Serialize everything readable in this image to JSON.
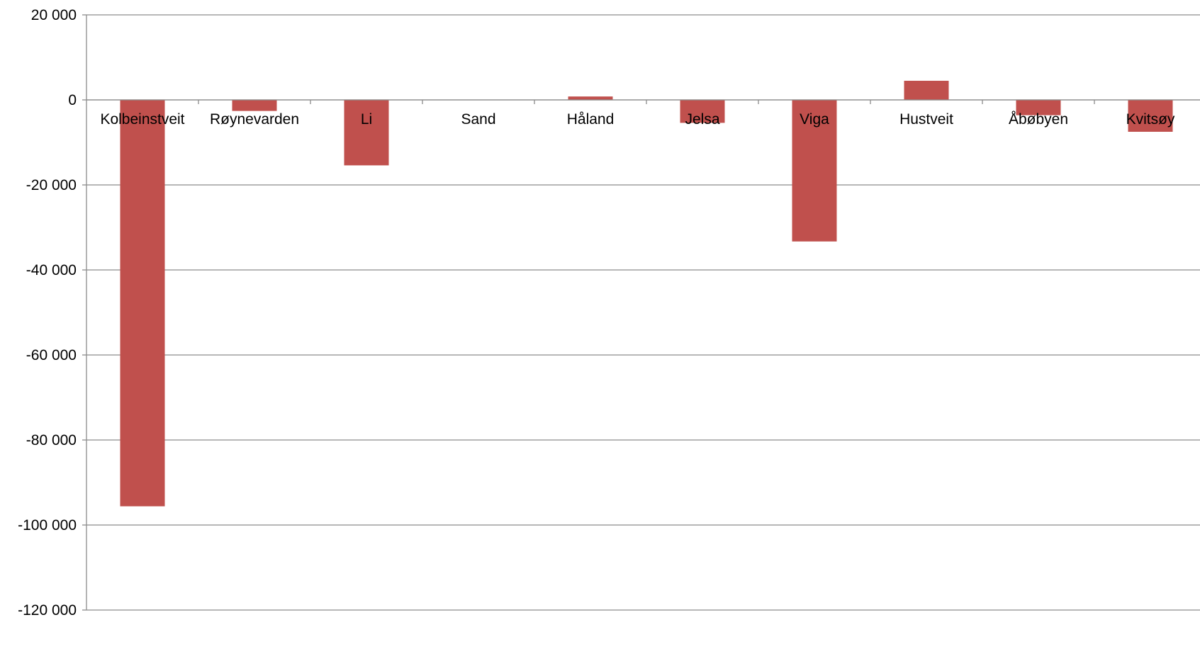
{
  "chart_data": {
    "type": "bar",
    "categories": [
      "Kolbeinstveit",
      "Røynevarden",
      "Li",
      "Sand",
      "Håland",
      "Jelsa",
      "Viga",
      "Hustveit",
      "Åbøbyen",
      "Kvitsøy"
    ],
    "values": [
      -95600,
      -2600,
      -15400,
      0,
      800,
      -5400,
      -33300,
      4500,
      -3600,
      -7500
    ],
    "ylim": [
      -120000,
      20000
    ],
    "yticks": [
      20000,
      0,
      -20000,
      -40000,
      -60000,
      -80000,
      -100000,
      -120000
    ],
    "ytick_labels": [
      "20 000",
      "0",
      "-20 000",
      "-40 000",
      "-60 000",
      "-80 000",
      "-100 000",
      "-120 000"
    ],
    "grid": true,
    "bar_color": "#c0504d",
    "title": "",
    "xlabel": "",
    "ylabel": ""
  }
}
